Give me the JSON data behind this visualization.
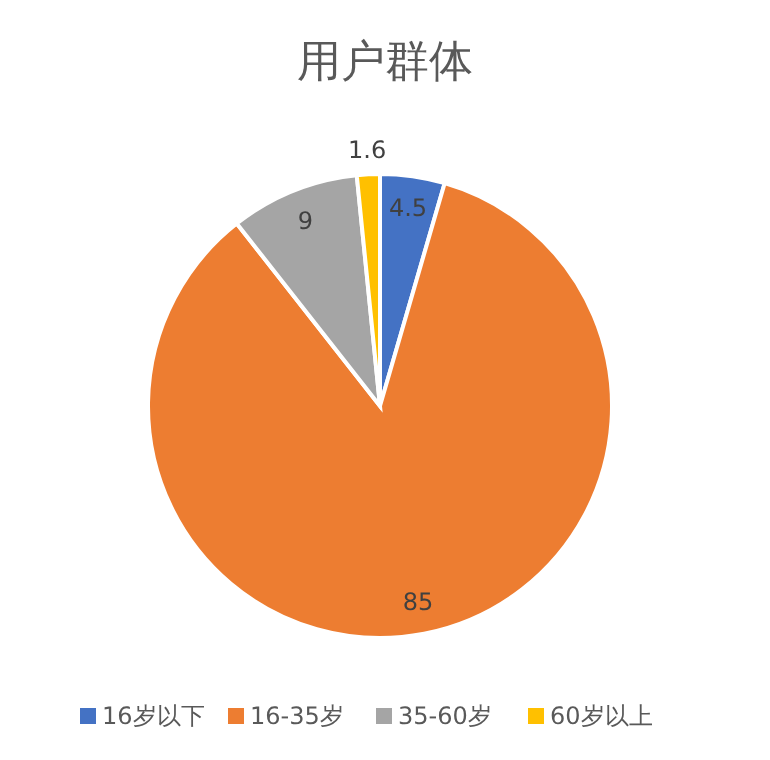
{
  "chart_data": {
    "type": "pie",
    "title": "用户群体",
    "categories": [
      "16岁以下",
      "16-35岁",
      "35-60岁",
      "60岁以上"
    ],
    "values": [
      4.5,
      85,
      9,
      1.6
    ],
    "colors": [
      "#4472c4",
      "#ed7d31",
      "#a5a5a5",
      "#ffc000"
    ],
    "data_labels": true,
    "legend": "bottom"
  }
}
